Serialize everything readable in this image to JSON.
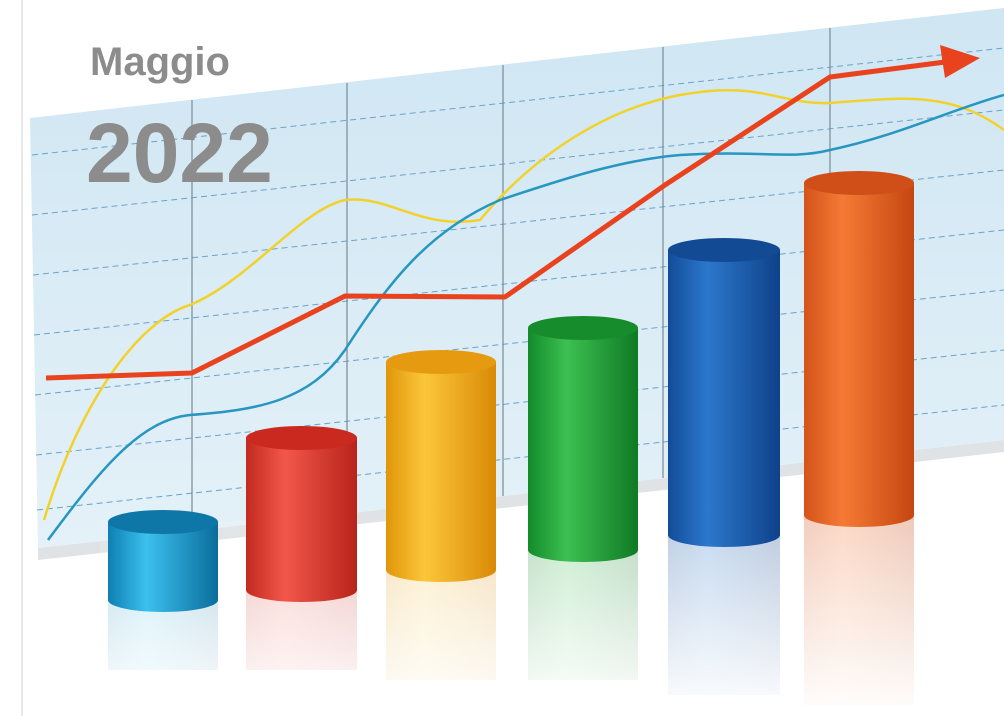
{
  "title": {
    "month": "Maggio",
    "year": "2022"
  }
}
